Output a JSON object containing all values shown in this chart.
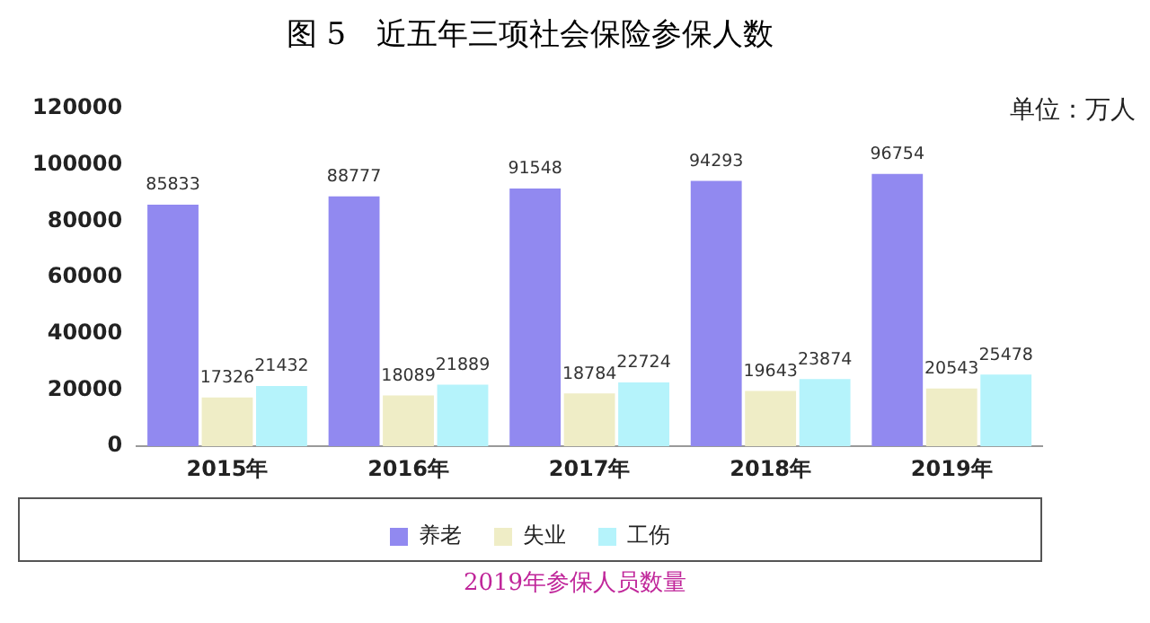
{
  "chart_data": {
    "type": "bar",
    "title": "图 5　近五年三项社会保险参保人数",
    "categories": [
      "2015年",
      "2016年",
      "2017年",
      "2018年",
      "2019年"
    ],
    "series": [
      {
        "name": "养老",
        "color": "#9189f0",
        "values": [
          85833,
          88777,
          91548,
          94293,
          96754
        ]
      },
      {
        "name": "失业",
        "color": "#efedc6",
        "values": [
          17326,
          18089,
          18784,
          19643,
          20543
        ]
      },
      {
        "name": "工伤",
        "color": "#b5f3fb",
        "values": [
          21432,
          21889,
          22724,
          23874,
          25478
        ]
      }
    ],
    "ylim": [
      0,
      120000
    ],
    "yticks": [
      0,
      20000,
      40000,
      60000,
      80000,
      100000,
      120000
    ],
    "grid": false,
    "legend": "bottom",
    "data_labels": true,
    "annotations": [
      "单位：万人",
      "2019年参保人员数量"
    ]
  }
}
